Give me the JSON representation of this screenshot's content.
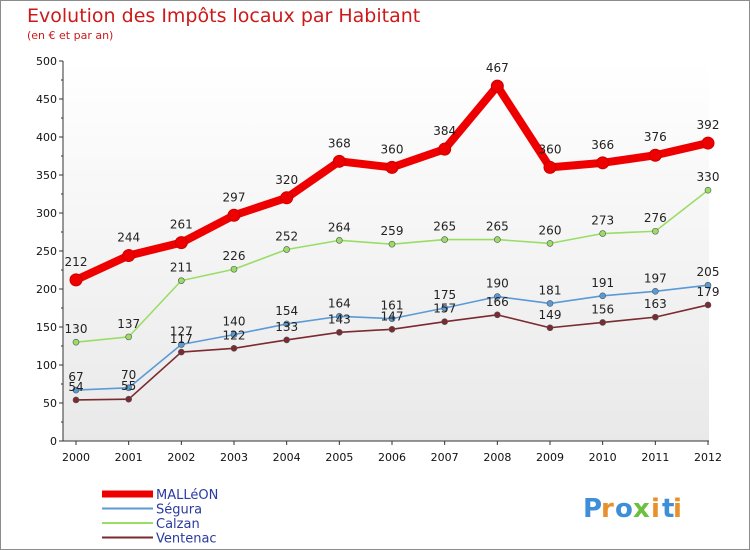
{
  "chart_data": {
    "type": "line",
    "title": "Evolution des Impôts locaux par Habitant",
    "subtitle": "(en € et par an)",
    "x": [
      "2000",
      "2001",
      "2002",
      "2003",
      "2004",
      "2005",
      "2006",
      "2007",
      "2008",
      "2009",
      "2010",
      "2011",
      "2012"
    ],
    "ylim": [
      0,
      500
    ],
    "yticks": [
      "0",
      "50",
      "100",
      "150",
      "200",
      "250",
      "300",
      "350",
      "400",
      "450",
      "500"
    ],
    "grid": false,
    "legend_position": "bottom-left",
    "series": [
      {
        "name": "MALLéON",
        "color": "#ee0000",
        "values": [
          212,
          244,
          261,
          297,
          320,
          368,
          360,
          384,
          467,
          360,
          366,
          376,
          392
        ]
      },
      {
        "name": "Ségura",
        "color": "#5a9ad6",
        "values": [
          67,
          70,
          127,
          140,
          154,
          164,
          161,
          175,
          190,
          181,
          191,
          197,
          205
        ]
      },
      {
        "name": "Calzan",
        "color": "#99dd66",
        "values": [
          130,
          137,
          211,
          226,
          252,
          264,
          259,
          265,
          265,
          260,
          273,
          276,
          330
        ]
      },
      {
        "name": "Ventenac",
        "color": "#7a2a30",
        "values": [
          54,
          55,
          117,
          122,
          133,
          143,
          147,
          157,
          166,
          149,
          156,
          163,
          179
        ]
      }
    ]
  },
  "brand": {
    "letters": [
      "P",
      "r",
      "o",
      "x",
      "i",
      "t",
      "i"
    ],
    "colors": [
      "#3f8fd8",
      "#e8902a",
      "#3f8fd8",
      "#6cc040",
      "#e8902a",
      "#3f8fd8",
      "#e8902a"
    ]
  }
}
